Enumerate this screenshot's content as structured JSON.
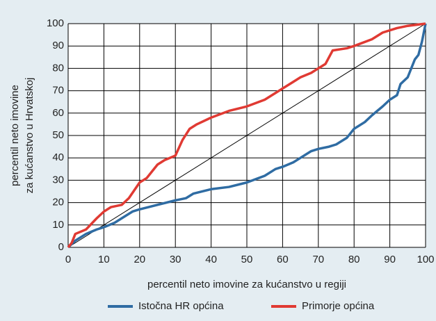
{
  "chart_data": {
    "type": "line",
    "y_label": [
      "percentil neto imovine",
      "za kućanstvo u Hrvatskoj"
    ],
    "x_label": "percentil neto imovine za kućanstvo u regiji",
    "xlim": [
      0,
      100
    ],
    "xticks": [
      0,
      10,
      20,
      30,
      40,
      50,
      60,
      70,
      80,
      90,
      100
    ],
    "ylim": [
      0,
      100
    ],
    "yticks": [
      0,
      10,
      20,
      30,
      40,
      50,
      60,
      70,
      80,
      90,
      100
    ],
    "grid": true,
    "legend": "bottom",
    "diagonal": true,
    "series": [
      {
        "name": "Istočna HR općina",
        "color": "#2f6ca3",
        "x": [
          0,
          2,
          5,
          8,
          10,
          13,
          15,
          18,
          20,
          25,
          30,
          33,
          35,
          40,
          45,
          50,
          55,
          58,
          60,
          63,
          65,
          68,
          70,
          73,
          75,
          78,
          80,
          83,
          85,
          88,
          90,
          92,
          93,
          95,
          96,
          97,
          98,
          99,
          100
        ],
        "values": [
          0,
          3,
          6,
          8,
          9,
          11,
          13,
          16,
          17,
          19,
          21,
          22,
          24,
          26,
          27,
          29,
          32,
          35,
          36,
          38,
          40,
          43,
          44,
          45,
          46,
          49,
          53,
          56,
          59,
          63,
          66,
          68,
          73,
          76,
          80,
          84,
          86,
          92,
          100
        ]
      },
      {
        "name": "Primorje općina",
        "color": "#e03a33",
        "x": [
          0,
          1,
          2,
          5,
          8,
          10,
          12,
          15,
          17,
          20,
          22,
          25,
          27,
          30,
          32,
          34,
          36,
          40,
          45,
          50,
          55,
          60,
          63,
          65,
          68,
          70,
          72,
          74,
          78,
          80,
          85,
          88,
          92,
          95,
          100
        ],
        "values": [
          0,
          2,
          6,
          8,
          13,
          16,
          18,
          19,
          22,
          29,
          31,
          37,
          39,
          41,
          48,
          53,
          55,
          58,
          61,
          63,
          66,
          71,
          74,
          76,
          78,
          80,
          82,
          88,
          89,
          90,
          93,
          96,
          98,
          99,
          100
        ]
      }
    ]
  }
}
